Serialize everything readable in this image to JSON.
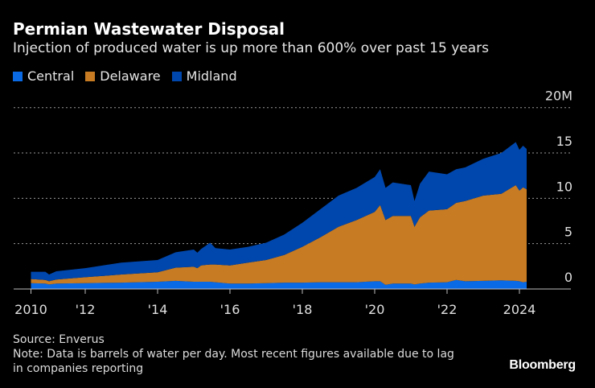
{
  "title": "Permian Wastewater Disposal",
  "subtitle": "Injection of produced water is up more than 600% over past 15 years",
  "footer": {
    "source": "Source: Enverus",
    "note": "Note: Data is barrels of water per day. Most recent figures available due to lag in companies reporting"
  },
  "logo": "Bloomberg",
  "chart_data": {
    "type": "area",
    "stacked": true,
    "ylabel": "",
    "xlabel": "",
    "ylim": [
      0,
      20
    ],
    "y_unit": "M",
    "y_ticks": [
      0,
      5,
      10,
      15,
      20
    ],
    "y_tick_labels": [
      "0",
      "5",
      "10",
      "15",
      "20M"
    ],
    "x_ticks": [
      2010.5,
      2012,
      2014,
      2016,
      2018,
      2020,
      2022,
      2024
    ],
    "x_tick_labels": [
      "2010",
      "'12",
      "'14",
      "'16",
      "'18",
      "'20",
      "'22",
      "2024"
    ],
    "grid": true,
    "legend_position": "top-left",
    "x": [
      2010.5,
      2010.9,
      2011.0,
      2011.2,
      2012.0,
      2013.0,
      2014.0,
      2014.5,
      2015.0,
      2015.1,
      2015.2,
      2015.45,
      2015.6,
      2016.0,
      2016.5,
      2017.0,
      2017.5,
      2018.0,
      2018.5,
      2019.0,
      2019.5,
      2020.0,
      2020.15,
      2020.3,
      2020.5,
      2021.0,
      2021.1,
      2021.25,
      2021.5,
      2022.0,
      2022.25,
      2022.5,
      2023.0,
      2023.5,
      2023.9,
      2024.0,
      2024.1,
      2024.2
    ],
    "series": [
      {
        "name": "Central",
        "color": "#0a6ae6",
        "values": [
          0.65,
          0.6,
          0.5,
          0.6,
          0.65,
          0.7,
          0.8,
          0.9,
          0.8,
          0.8,
          0.8,
          0.8,
          0.75,
          0.6,
          0.6,
          0.65,
          0.7,
          0.7,
          0.75,
          0.75,
          0.75,
          0.85,
          0.85,
          0.45,
          0.6,
          0.6,
          0.5,
          0.6,
          0.7,
          0.75,
          1.0,
          0.85,
          0.9,
          0.95,
          0.9,
          0.85,
          0.75,
          0.8
        ]
      },
      {
        "name": "Delaware",
        "color": "#c77b23",
        "values": [
          0.45,
          0.4,
          0.35,
          0.45,
          0.65,
          0.9,
          1.05,
          1.45,
          1.65,
          1.5,
          1.8,
          1.9,
          1.95,
          2.0,
          2.3,
          2.55,
          3.05,
          3.95,
          4.95,
          6.1,
          6.85,
          7.65,
          8.4,
          7.15,
          7.45,
          7.45,
          6.35,
          7.3,
          7.95,
          8.05,
          8.5,
          8.85,
          9.4,
          9.55,
          10.55,
          10.0,
          10.45,
          10.2
        ]
      },
      {
        "name": "Midland",
        "color": "#0047ad",
        "values": [
          0.8,
          0.9,
          0.75,
          0.9,
          1.0,
          1.3,
          1.35,
          1.7,
          1.9,
          1.7,
          1.8,
          2.4,
          1.8,
          1.75,
          1.75,
          1.9,
          2.25,
          2.65,
          3.1,
          3.45,
          3.55,
          3.85,
          3.95,
          3.55,
          3.7,
          3.4,
          2.85,
          3.7,
          4.3,
          3.85,
          3.7,
          3.7,
          4.05,
          4.5,
          4.75,
          4.5,
          4.6,
          4.45
        ]
      }
    ]
  }
}
